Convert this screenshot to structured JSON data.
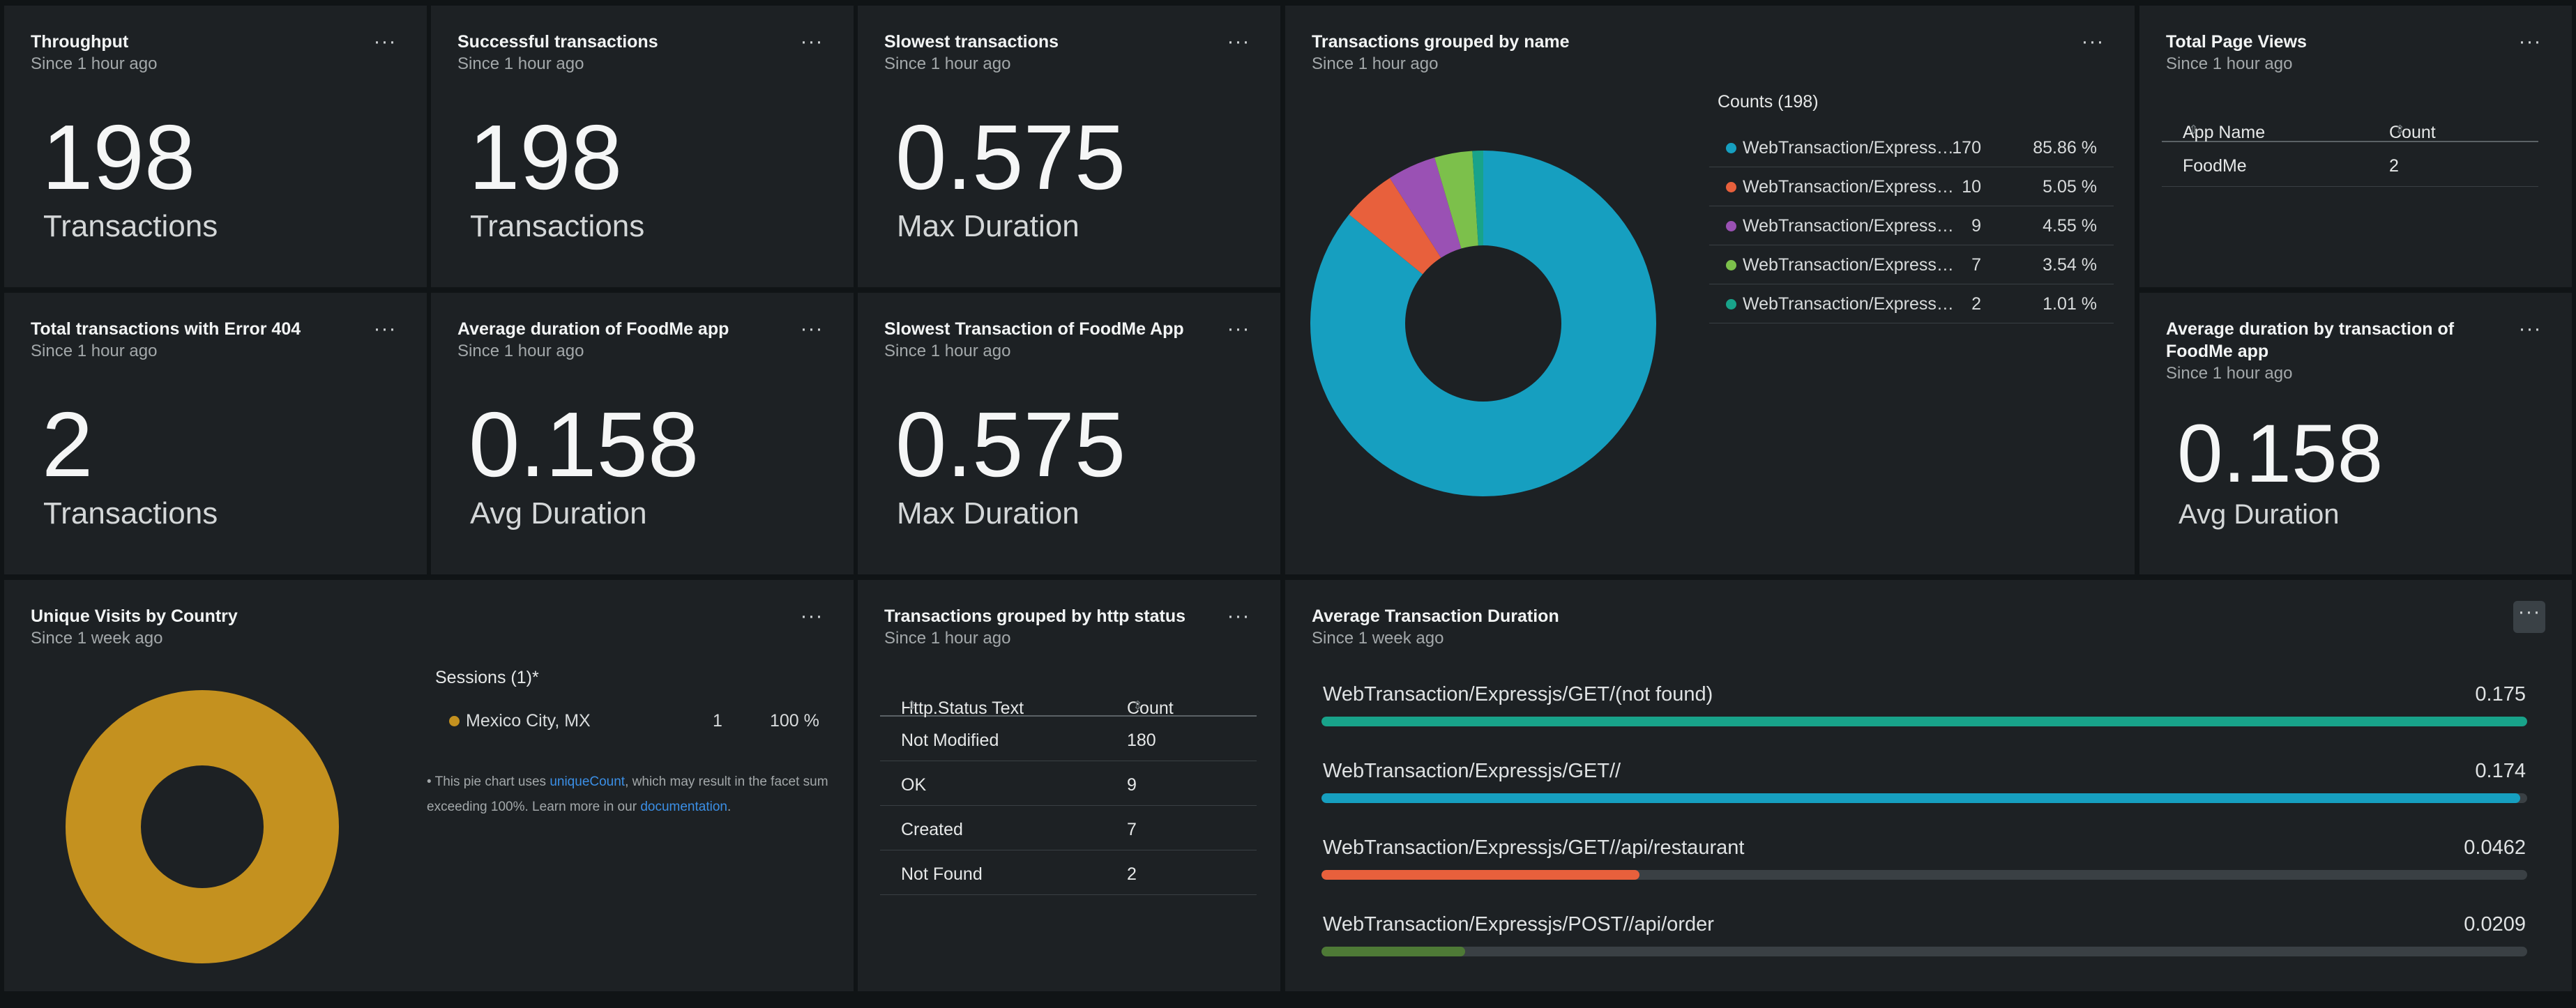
{
  "cards": {
    "throughput": {
      "title": "Throughput",
      "since": "Since 1 hour ago",
      "value": "198",
      "label": "Transactions"
    },
    "successful": {
      "title": "Successful transactions",
      "since": "Since 1 hour ago",
      "value": "198",
      "label": "Transactions"
    },
    "slowest": {
      "title": "Slowest transactions",
      "since": "Since 1 hour ago",
      "value": "0.575",
      "label": "Max Duration"
    },
    "error404": {
      "title": "Total transactions with Error 404",
      "since": "Since 1 hour ago",
      "value": "2",
      "label": "Transactions"
    },
    "avg_foodme": {
      "title": "Average duration of FoodMe app",
      "since": "Since 1 hour ago",
      "value": "0.158",
      "label": "Avg Duration"
    },
    "slowest_foodme": {
      "title": "Slowest Transaction of FoodMe App",
      "since": "Since 1 hour ago",
      "value": "0.575",
      "label": "Max Duration"
    },
    "avg_by_txn": {
      "title": "Average duration by transaction of FoodMe app",
      "since": "Since 1 hour ago",
      "value": "0.158",
      "label": "Avg Duration"
    }
  },
  "grouped_by_name": {
    "title": "Transactions grouped by name",
    "since": "Since 1 hour ago",
    "legend_title": "Counts (198)",
    "rows": [
      {
        "name": "WebTransaction/Express…",
        "count": "170",
        "pct": "85.86 %",
        "color": "#169fc0"
      },
      {
        "name": "WebTransaction/Express…",
        "count": "10",
        "pct": "5.05 %",
        "color": "#e8603c"
      },
      {
        "name": "WebTransaction/Express…",
        "count": "9",
        "pct": "4.55 %",
        "color": "#9a51b4"
      },
      {
        "name": "WebTransaction/Express…",
        "count": "7",
        "pct": "3.54 %",
        "color": "#7cc04b"
      },
      {
        "name": "WebTransaction/Express…",
        "count": "2",
        "pct": "1.01 %",
        "color": "#18a38a"
      }
    ]
  },
  "page_views": {
    "title": "Total Page Views",
    "since": "Since 1 hour ago",
    "headers": [
      "App Name",
      "Count"
    ],
    "rows": [
      [
        "FoodMe",
        "2"
      ]
    ]
  },
  "unique_visits": {
    "title": "Unique Visits by Country",
    "since": "Since 1 week ago",
    "legend_title": "Sessions (1)*",
    "rows": [
      {
        "name": "Mexico City, MX",
        "count": "1",
        "pct": "100 %",
        "color": "#c4911f"
      }
    ],
    "note_prefix": "• This pie chart uses ",
    "note_link1": "uniqueCount",
    "note_mid": ", which may result in the facet sum exceeding 100%. Learn more in our ",
    "note_link2": "documentation",
    "note_suffix": "."
  },
  "http_status": {
    "title": "Transactions grouped by http status",
    "since": "Since 1 hour ago",
    "headers": [
      "Http.Status Text",
      "Count"
    ],
    "rows": [
      [
        "Not Modified",
        "180"
      ],
      [
        "OK",
        "9"
      ],
      [
        "Created",
        "7"
      ],
      [
        "Not Found",
        "2"
      ]
    ]
  },
  "avg_duration": {
    "title": "Average Transaction Duration",
    "since": "Since 1 week ago",
    "max": 0.175,
    "rows": [
      {
        "name": "WebTransaction/Expressjs/GET/(not found)",
        "value": 0.175,
        "label": "0.175",
        "color": "#18a38a"
      },
      {
        "name": "WebTransaction/Expressjs/GET//",
        "value": 0.174,
        "label": "0.174",
        "color": "#169fc0"
      },
      {
        "name": "WebTransaction/Expressjs/GET//api/restaurant",
        "value": 0.0462,
        "label": "0.0462",
        "color": "#e8603c"
      },
      {
        "name": "WebTransaction/Expressjs/POST//api/order",
        "value": 0.0209,
        "label": "0.0209",
        "color": "#4e7a36"
      }
    ]
  },
  "menu_glyph": "···",
  "sort_glyph": "⇕",
  "chart_data": [
    {
      "type": "pie",
      "title": "Transactions grouped by name",
      "categories": [
        "WebTransaction/Express…",
        "WebTransaction/Express…",
        "WebTransaction/Express…",
        "WebTransaction/Express…",
        "WebTransaction/Express…"
      ],
      "values": [
        170,
        10,
        9,
        7,
        2
      ]
    },
    {
      "type": "pie",
      "title": "Unique Visits by Country",
      "categories": [
        "Mexico City, MX"
      ],
      "values": [
        1
      ]
    },
    {
      "type": "bar",
      "title": "Average Transaction Duration",
      "categories": [
        "WebTransaction/Expressjs/GET/(not found)",
        "WebTransaction/Expressjs/GET//",
        "WebTransaction/Expressjs/GET//api/restaurant",
        "WebTransaction/Expressjs/POST//api/order"
      ],
      "values": [
        0.175,
        0.174,
        0.0462,
        0.0209
      ]
    }
  ]
}
